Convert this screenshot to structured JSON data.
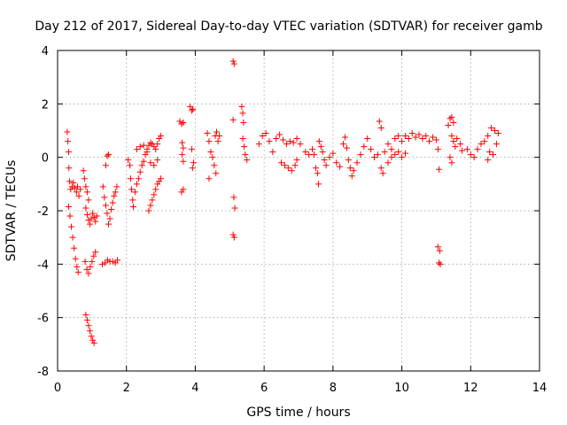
{
  "chart_data": {
    "type": "scatter",
    "title": "Day 212 of 2017, Sidereal Day-to-day VTEC variation (SDTVAR) for receiver gamb",
    "xlabel": "GPS time / hours",
    "ylabel": "SDTVAR / TECUs",
    "xlim": [
      0,
      14
    ],
    "ylim": [
      -8,
      4
    ],
    "xticks": [
      0,
      2,
      4,
      6,
      8,
      10,
      12,
      14
    ],
    "yticks": [
      -8,
      -6,
      -4,
      -2,
      0,
      2,
      4
    ],
    "grid": true,
    "marker": "+",
    "color": "#ff0000",
    "series": [
      {
        "name": "SDTVAR",
        "points": [
          [
            0.28,
            0.95
          ],
          [
            0.3,
            0.6
          ],
          [
            0.32,
            0.2
          ],
          [
            0.33,
            -0.4
          ],
          [
            0.35,
            -0.9
          ],
          [
            0.38,
            -1.2
          ],
          [
            0.42,
            -1.1
          ],
          [
            0.46,
            -0.95
          ],
          [
            0.5,
            -1.15
          ],
          [
            0.55,
            -1.3
          ],
          [
            0.58,
            -1.1
          ],
          [
            0.62,
            -1.45
          ],
          [
            0.66,
            -1.2
          ],
          [
            0.32,
            -1.85
          ],
          [
            0.36,
            -2.2
          ],
          [
            0.4,
            -2.6
          ],
          [
            0.44,
            -3.0
          ],
          [
            0.48,
            -3.4
          ],
          [
            0.52,
            -3.8
          ],
          [
            0.56,
            -4.1
          ],
          [
            0.6,
            -4.3
          ],
          [
            0.8,
            -3.9
          ],
          [
            0.85,
            -4.2
          ],
          [
            0.9,
            -4.35
          ],
          [
            0.95,
            -4.1
          ],
          [
            1.0,
            -3.9
          ],
          [
            1.05,
            -3.7
          ],
          [
            1.1,
            -3.55
          ],
          [
            0.82,
            -5.9
          ],
          [
            0.86,
            -6.1
          ],
          [
            0.9,
            -6.3
          ],
          [
            0.94,
            -6.5
          ],
          [
            0.98,
            -6.7
          ],
          [
            1.02,
            -6.85
          ],
          [
            1.06,
            -6.95
          ],
          [
            0.82,
            -1.9
          ],
          [
            0.86,
            -2.15
          ],
          [
            0.9,
            -2.35
          ],
          [
            0.94,
            -2.5
          ],
          [
            0.98,
            -2.3
          ],
          [
            1.02,
            -2.1
          ],
          [
            1.06,
            -2.25
          ],
          [
            1.1,
            -2.4
          ],
          [
            1.14,
            -2.2
          ],
          [
            0.75,
            -0.5
          ],
          [
            0.78,
            -0.8
          ],
          [
            0.82,
            -1.1
          ],
          [
            0.86,
            -1.3
          ],
          [
            0.9,
            -1.6
          ],
          [
            1.3,
            -4.0
          ],
          [
            1.38,
            -3.95
          ],
          [
            1.45,
            -3.85
          ],
          [
            1.52,
            -3.9
          ],
          [
            1.6,
            -3.9
          ],
          [
            1.68,
            -3.95
          ],
          [
            1.74,
            -3.85
          ],
          [
            1.32,
            -1.1
          ],
          [
            1.36,
            -1.5
          ],
          [
            1.4,
            -1.8
          ],
          [
            1.44,
            -2.1
          ],
          [
            1.48,
            -2.5
          ],
          [
            1.52,
            -2.3
          ],
          [
            1.56,
            -1.95
          ],
          [
            1.6,
            -1.7
          ],
          [
            1.64,
            -1.45
          ],
          [
            1.68,
            -1.3
          ],
          [
            1.72,
            -1.1
          ],
          [
            1.4,
            -0.3
          ],
          [
            1.44,
            0.05
          ],
          [
            1.48,
            0.1
          ],
          [
            2.05,
            -0.1
          ],
          [
            2.1,
            -0.3
          ],
          [
            2.12,
            -0.8
          ],
          [
            2.15,
            -1.2
          ],
          [
            2.18,
            -1.6
          ],
          [
            2.2,
            -1.85
          ],
          [
            2.25,
            -1.3
          ],
          [
            2.3,
            -1.0
          ],
          [
            2.35,
            -0.8
          ],
          [
            2.4,
            -0.55
          ],
          [
            2.45,
            -0.3
          ],
          [
            2.5,
            -0.15
          ],
          [
            2.55,
            0.1
          ],
          [
            2.6,
            0.3
          ],
          [
            2.65,
            0.45
          ],
          [
            2.7,
            0.55
          ],
          [
            2.75,
            0.5
          ],
          [
            2.8,
            0.4
          ],
          [
            2.85,
            0.3
          ],
          [
            2.9,
            0.5
          ],
          [
            2.95,
            0.7
          ],
          [
            3.0,
            0.8
          ],
          [
            2.3,
            0.3
          ],
          [
            2.4,
            0.4
          ],
          [
            2.5,
            0.45
          ],
          [
            2.6,
            0.2
          ],
          [
            2.7,
            -0.2
          ],
          [
            2.8,
            -0.3
          ],
          [
            2.9,
            -0.1
          ],
          [
            2.65,
            -2.0
          ],
          [
            2.7,
            -1.8
          ],
          [
            2.75,
            -1.6
          ],
          [
            2.8,
            -1.4
          ],
          [
            2.85,
            -1.2
          ],
          [
            2.9,
            -1.0
          ],
          [
            2.95,
            -0.9
          ],
          [
            3.0,
            -0.8
          ],
          [
            3.55,
            1.35
          ],
          [
            3.6,
            1.25
          ],
          [
            3.65,
            1.3
          ],
          [
            3.62,
            0.55
          ],
          [
            3.65,
            0.35
          ],
          [
            3.62,
            0.1
          ],
          [
            3.65,
            -0.15
          ],
          [
            3.6,
            -1.3
          ],
          [
            3.65,
            -1.2
          ],
          [
            3.85,
            1.9
          ],
          [
            3.9,
            1.75
          ],
          [
            3.93,
            1.8
          ],
          [
            3.9,
            0.3
          ],
          [
            3.92,
            -0.4
          ],
          [
            3.95,
            -0.2
          ],
          [
            4.35,
            0.9
          ],
          [
            4.4,
            0.6
          ],
          [
            4.45,
            0.2
          ],
          [
            4.5,
            0.0
          ],
          [
            4.55,
            -0.3
          ],
          [
            4.58,
            0.8
          ],
          [
            4.62,
            0.95
          ],
          [
            4.66,
            0.6
          ],
          [
            4.7,
            0.8
          ],
          [
            4.6,
            -0.6
          ],
          [
            4.4,
            -0.8
          ],
          [
            5.1,
            3.6
          ],
          [
            5.13,
            3.5
          ],
          [
            5.1,
            1.4
          ],
          [
            5.12,
            -1.5
          ],
          [
            5.15,
            -1.9
          ],
          [
            5.1,
            -2.9
          ],
          [
            5.13,
            -3.0
          ],
          [
            5.35,
            1.9
          ],
          [
            5.38,
            1.65
          ],
          [
            5.4,
            1.3
          ],
          [
            5.38,
            0.7
          ],
          [
            5.42,
            0.4
          ],
          [
            5.45,
            0.1
          ],
          [
            5.5,
            -0.1
          ],
          [
            5.85,
            0.5
          ],
          [
            5.95,
            0.8
          ],
          [
            6.05,
            0.9
          ],
          [
            6.15,
            0.6
          ],
          [
            6.25,
            0.2
          ],
          [
            6.35,
            0.7
          ],
          [
            6.45,
            0.85
          ],
          [
            6.55,
            0.65
          ],
          [
            6.65,
            0.5
          ],
          [
            6.75,
            0.6
          ],
          [
            6.85,
            0.55
          ],
          [
            6.95,
            0.7
          ],
          [
            7.05,
            0.5
          ],
          [
            6.5,
            -0.2
          ],
          [
            6.6,
            -0.3
          ],
          [
            6.7,
            -0.4
          ],
          [
            6.8,
            -0.5
          ],
          [
            6.9,
            -0.3
          ],
          [
            6.95,
            -0.1
          ],
          [
            7.2,
            0.2
          ],
          [
            7.3,
            0.1
          ],
          [
            7.4,
            0.3
          ],
          [
            7.45,
            0.1
          ],
          [
            7.5,
            -0.4
          ],
          [
            7.55,
            -0.6
          ],
          [
            7.58,
            -1.0
          ],
          [
            7.6,
            0.6
          ],
          [
            7.65,
            0.4
          ],
          [
            7.7,
            0.2
          ],
          [
            7.75,
            -0.1
          ],
          [
            7.8,
            -0.3
          ],
          [
            7.9,
            0.0
          ],
          [
            8.0,
            0.15
          ],
          [
            8.1,
            -0.2
          ],
          [
            8.2,
            -0.35
          ],
          [
            8.3,
            0.5
          ],
          [
            8.35,
            0.75
          ],
          [
            8.4,
            0.35
          ],
          [
            8.45,
            -0.1
          ],
          [
            8.5,
            -0.4
          ],
          [
            8.55,
            -0.7
          ],
          [
            8.6,
            -0.5
          ],
          [
            8.7,
            -0.2
          ],
          [
            8.8,
            0.1
          ],
          [
            8.9,
            0.4
          ],
          [
            9.0,
            0.7
          ],
          [
            9.1,
            0.3
          ],
          [
            9.2,
            0.0
          ],
          [
            9.3,
            0.1
          ],
          [
            9.35,
            1.35
          ],
          [
            9.4,
            1.1
          ],
          [
            9.4,
            -0.4
          ],
          [
            9.45,
            -0.6
          ],
          [
            9.5,
            0.2
          ],
          [
            9.6,
            0.5
          ],
          [
            9.7,
            0.3
          ],
          [
            9.8,
            0.7
          ],
          [
            9.9,
            0.8
          ],
          [
            10.0,
            0.6
          ],
          [
            10.1,
            0.8
          ],
          [
            10.2,
            0.7
          ],
          [
            10.3,
            0.9
          ],
          [
            10.4,
            0.75
          ],
          [
            10.5,
            0.85
          ],
          [
            10.6,
            0.7
          ],
          [
            10.7,
            0.8
          ],
          [
            10.8,
            0.6
          ],
          [
            10.9,
            0.75
          ],
          [
            11.0,
            0.65
          ],
          [
            11.05,
            0.3
          ],
          [
            9.6,
            -0.2
          ],
          [
            9.7,
            0.0
          ],
          [
            9.8,
            0.1
          ],
          [
            9.9,
            0.2
          ],
          [
            10.0,
            0.0
          ],
          [
            10.1,
            0.15
          ],
          [
            11.05,
            -3.35
          ],
          [
            11.1,
            -3.5
          ],
          [
            11.08,
            -3.95
          ],
          [
            11.12,
            -4.0
          ],
          [
            11.08,
            -0.45
          ],
          [
            11.35,
            1.2
          ],
          [
            11.4,
            1.45
          ],
          [
            11.45,
            1.5
          ],
          [
            11.5,
            1.3
          ],
          [
            11.45,
            0.8
          ],
          [
            11.5,
            0.6
          ],
          [
            11.55,
            0.4
          ],
          [
            11.6,
            0.7
          ],
          [
            11.7,
            0.5
          ],
          [
            11.75,
            0.25
          ],
          [
            11.4,
            0.0
          ],
          [
            11.45,
            -0.2
          ],
          [
            11.9,
            0.3
          ],
          [
            12.0,
            0.1
          ],
          [
            12.1,
            0.0
          ],
          [
            12.2,
            0.3
          ],
          [
            12.3,
            0.5
          ],
          [
            12.4,
            0.6
          ],
          [
            12.5,
            0.8
          ],
          [
            12.6,
            1.1
          ],
          [
            12.7,
            1.0
          ],
          [
            12.8,
            0.9
          ],
          [
            12.55,
            0.2
          ],
          [
            12.65,
            0.1
          ],
          [
            12.75,
            0.5
          ],
          [
            12.5,
            -0.1
          ]
        ]
      }
    ]
  }
}
